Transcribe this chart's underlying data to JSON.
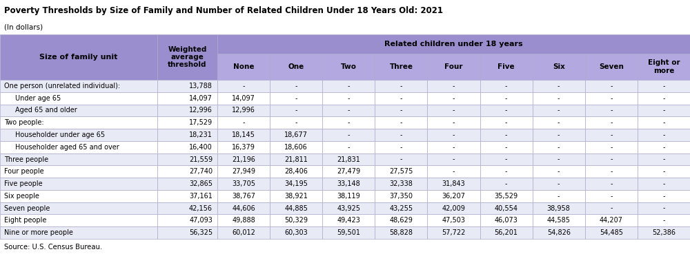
{
  "title": "Poverty Thresholds by Size of Family and Number of Related Children Under 18 Years Old: 2021",
  "subtitle": "(In dollars)",
  "source": "Source: U.S. Census Bureau.",
  "header_bg": "#9b8ece",
  "subheader_bg": "#b3a8e0",
  "row_bg_even": "#e8eaf6",
  "row_bg_odd": "#ffffff",
  "border_color": "#aaaacc",
  "col1_header": "Size of family unit",
  "col2_header": "Weighted\naverage\nthreshold",
  "group_header": "Related children under 18 years",
  "child_cols": [
    "None",
    "One",
    "Two",
    "Three",
    "Four",
    "Five",
    "Six",
    "Seven",
    "Eight or\nmore"
  ],
  "rows": [
    {
      "label": "One person (unrelated individual):",
      "indent": false,
      "weighted": "13,788",
      "vals": [
        "-",
        "-",
        "-",
        "-",
        "-",
        "-",
        "-",
        "-",
        "-"
      ]
    },
    {
      "label": "Under age 65",
      "indent": true,
      "weighted": "14,097",
      "vals": [
        "14,097",
        "-",
        "-",
        "-",
        "-",
        "-",
        "-",
        "-",
        "-"
      ]
    },
    {
      "label": "Aged 65 and older",
      "indent": true,
      "weighted": "12,996",
      "vals": [
        "12,996",
        "-",
        "-",
        "-",
        "-",
        "-",
        "-",
        "-",
        "-"
      ]
    },
    {
      "label": "Two people:",
      "indent": false,
      "weighted": "17,529",
      "vals": [
        "-",
        "-",
        "-",
        "-",
        "-",
        "-",
        "-",
        "-",
        "-"
      ]
    },
    {
      "label": "Householder under age 65",
      "indent": true,
      "weighted": "18,231",
      "vals": [
        "18,145",
        "18,677",
        "-",
        "-",
        "-",
        "-",
        "-",
        "-",
        "-"
      ]
    },
    {
      "label": "Householder aged 65 and over",
      "indent": true,
      "weighted": "16,400",
      "vals": [
        "16,379",
        "18,606",
        "-",
        "-",
        "-",
        "-",
        "-",
        "-",
        "-"
      ]
    },
    {
      "label": "Three people",
      "indent": false,
      "weighted": "21,559",
      "vals": [
        "21,196",
        "21,811",
        "21,831",
        "-",
        "-",
        "-",
        "-",
        "-",
        "-"
      ]
    },
    {
      "label": "Four people",
      "indent": false,
      "weighted": "27,740",
      "vals": [
        "27,949",
        "28,406",
        "27,479",
        "27,575",
        "-",
        "-",
        "-",
        "-",
        "-"
      ]
    },
    {
      "label": "Five people",
      "indent": false,
      "weighted": "32,865",
      "vals": [
        "33,705",
        "34,195",
        "33,148",
        "32,338",
        "31,843",
        "-",
        "-",
        "-",
        "-"
      ]
    },
    {
      "label": "Six people",
      "indent": false,
      "weighted": "37,161",
      "vals": [
        "38,767",
        "38,921",
        "38,119",
        "37,350",
        "36,207",
        "35,529",
        "-",
        "-",
        "-"
      ]
    },
    {
      "label": "Seven people",
      "indent": false,
      "weighted": "42,156",
      "vals": [
        "44,606",
        "44,885",
        "43,925",
        "43,255",
        "42,009",
        "40,554",
        "38,958",
        "-",
        "-"
      ]
    },
    {
      "label": "Eight people",
      "indent": false,
      "weighted": "47,093",
      "vals": [
        "49,888",
        "50,329",
        "49,423",
        "48,629",
        "47,503",
        "46,073",
        "44,585",
        "44,207",
        "-"
      ]
    },
    {
      "label": "Nine or more people",
      "indent": false,
      "weighted": "56,325",
      "vals": [
        "60,012",
        "60,303",
        "59,501",
        "58,828",
        "57,722",
        "56,201",
        "54,826",
        "54,485",
        "52,386"
      ]
    }
  ],
  "figsize": [
    10.0,
    3.69
  ],
  "dpi": 100
}
